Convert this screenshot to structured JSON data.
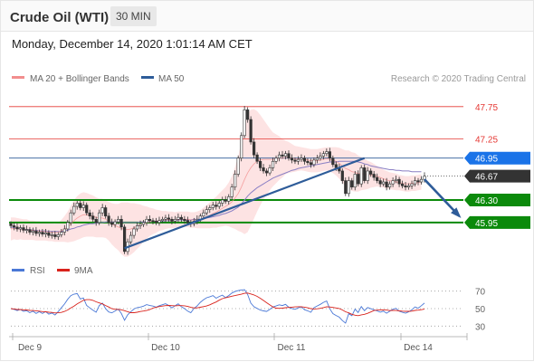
{
  "header": {
    "title": "Crude Oil (WTI)",
    "timeframe": "30 MIN"
  },
  "timestamp": "Monday, December 14, 2020 1:01:14 AM CET",
  "legend": {
    "ma20_bb": "MA 20 + Bollinger Bands",
    "ma50": "MA 50",
    "credit": "Research © 2020 Trading Central",
    "rsi": "RSI",
    "ma9": "9MA"
  },
  "colors": {
    "ma20": "#f28e8e",
    "ma50": "#2e5c99",
    "band_fill": "#fde3e3",
    "blue_badge": "#1a73e8",
    "green": "#0b8a0b",
    "dark": "#333333",
    "red_level": "#e53935",
    "rsi": "#4a78d6",
    "rsi_ma": "#d9231c"
  },
  "chart_data": [
    {
      "type": "candlestick",
      "title": "Crude Oil (WTI)",
      "ylim": [
        45.4,
        48.0
      ],
      "x_ticks": [
        "Dec 9",
        "Dec 10",
        "Dec 11",
        "Dec 14"
      ],
      "levels": [
        {
          "value": 47.75,
          "label": "47.75",
          "style": "red-text"
        },
        {
          "value": 47.25,
          "label": "47.25",
          "style": "red-text"
        },
        {
          "value": 46.95,
          "label": "46.95",
          "style": "blue-badge"
        },
        {
          "value": 46.67,
          "label": "46.67",
          "style": "dark-badge"
        },
        {
          "value": 46.3,
          "label": "46.30",
          "style": "green-badge"
        },
        {
          "value": 45.95,
          "label": "45.95",
          "style": "green-badge"
        }
      ],
      "close": [
        45.9,
        45.88,
        45.85,
        45.87,
        45.83,
        45.84,
        45.8,
        45.82,
        45.78,
        45.8,
        45.77,
        45.79,
        45.75,
        45.76,
        45.73,
        45.76,
        45.8,
        45.85,
        45.95,
        46.1,
        46.2,
        46.25,
        46.18,
        46.22,
        46.1,
        46.05,
        46.0,
        45.95,
        46.1,
        46.18,
        46.05,
        45.95,
        45.92,
        45.96,
        46.0,
        45.88,
        45.5,
        45.65,
        45.75,
        45.85,
        45.9,
        45.92,
        45.95,
        46.0,
        45.98,
        45.97,
        45.95,
        45.98,
        46.0,
        46.02,
        46.0,
        45.97,
        46.0,
        46.03,
        46.0,
        45.98,
        45.95,
        45.93,
        45.97,
        46.0,
        46.05,
        46.1,
        46.15,
        46.18,
        46.22,
        46.2,
        46.25,
        46.3,
        46.28,
        46.35,
        46.5,
        46.7,
        46.95,
        47.3,
        47.7,
        47.55,
        47.2,
        47.0,
        46.9,
        46.8,
        46.75,
        46.72,
        46.8,
        46.9,
        46.95,
        47.0,
        46.98,
        47.02,
        46.95,
        46.92,
        46.9,
        46.93,
        46.95,
        46.9,
        46.88,
        46.85,
        46.92,
        46.95,
        46.98,
        47.02,
        47.05,
        46.95,
        46.85,
        46.8,
        46.75,
        46.6,
        46.4,
        46.6,
        46.5,
        46.7,
        46.55,
        46.8,
        46.6,
        46.75,
        46.7,
        46.65,
        46.6,
        46.55,
        46.58,
        46.5,
        46.55,
        46.6,
        46.62,
        46.55,
        46.52,
        46.5,
        46.52,
        46.55,
        46.6,
        46.58,
        46.62,
        46.67
      ],
      "ma20": [
        45.85,
        45.86,
        45.85,
        45.85,
        45.84,
        45.84,
        45.83,
        45.83,
        45.82,
        45.82,
        45.81,
        45.81,
        45.8,
        45.8,
        45.79,
        45.8,
        45.82,
        45.85,
        45.88,
        45.93,
        45.98,
        46.02,
        46.05,
        46.07,
        46.07,
        46.06,
        46.05,
        46.03,
        46.02,
        46.02,
        46.0,
        45.97,
        45.93,
        45.9,
        45.88,
        45.86,
        45.84,
        45.84,
        45.85,
        45.87,
        45.89,
        45.91,
        45.93,
        45.95,
        45.96,
        45.97,
        45.97,
        45.98,
        45.98,
        45.99,
        45.99,
        45.99,
        45.99,
        46.0,
        46.0,
        46.0,
        46.0,
        45.99,
        45.99,
        45.99,
        46.0,
        46.02,
        46.04,
        46.06,
        46.09,
        46.11,
        46.14,
        46.17,
        46.2,
        46.23,
        46.27,
        46.33,
        46.4,
        46.5,
        46.62,
        46.72,
        46.8,
        46.86,
        46.9,
        46.92,
        46.93,
        46.93,
        46.93,
        46.93,
        46.94,
        46.95,
        46.95,
        46.96,
        46.96,
        46.95,
        46.94,
        46.94,
        46.94,
        46.93,
        46.92,
        46.91,
        46.91,
        46.91,
        46.92,
        46.93,
        46.94,
        46.93,
        46.92,
        46.9,
        46.87,
        46.83,
        46.79,
        46.77,
        46.74,
        46.73,
        46.71,
        46.71,
        46.7,
        46.69,
        46.69,
        46.68,
        46.67,
        46.65,
        46.63,
        46.61,
        46.6,
        46.59,
        46.58,
        46.57,
        46.56,
        46.55,
        46.55,
        46.56,
        46.56,
        46.57,
        46.58
      ],
      "band_width": [
        0.18,
        0.17,
        0.17,
        0.16,
        0.16,
        0.16,
        0.15,
        0.15,
        0.15,
        0.15,
        0.14,
        0.14,
        0.14,
        0.14,
        0.14,
        0.15,
        0.17,
        0.2,
        0.24,
        0.28,
        0.32,
        0.34,
        0.35,
        0.35,
        0.34,
        0.33,
        0.32,
        0.31,
        0.3,
        0.3,
        0.29,
        0.3,
        0.32,
        0.34,
        0.36,
        0.4,
        0.42,
        0.42,
        0.4,
        0.38,
        0.35,
        0.32,
        0.28,
        0.25,
        0.22,
        0.2,
        0.18,
        0.16,
        0.15,
        0.14,
        0.13,
        0.13,
        0.12,
        0.12,
        0.12,
        0.12,
        0.12,
        0.12,
        0.12,
        0.13,
        0.14,
        0.16,
        0.18,
        0.2,
        0.22,
        0.24,
        0.26,
        0.28,
        0.3,
        0.34,
        0.4,
        0.48,
        0.58,
        0.7,
        0.85,
        0.92,
        0.9,
        0.85,
        0.78,
        0.7,
        0.62,
        0.55,
        0.48,
        0.42,
        0.38,
        0.34,
        0.3,
        0.26,
        0.24,
        0.22,
        0.2,
        0.19,
        0.18,
        0.18,
        0.18,
        0.18,
        0.18,
        0.18,
        0.18,
        0.18,
        0.18,
        0.19,
        0.2,
        0.22,
        0.24,
        0.26,
        0.28,
        0.3,
        0.3,
        0.3,
        0.28,
        0.26,
        0.24,
        0.22,
        0.2,
        0.18,
        0.16,
        0.15,
        0.14,
        0.14,
        0.13,
        0.13,
        0.13,
        0.12,
        0.12,
        0.12,
        0.12,
        0.12,
        0.12,
        0.12,
        0.12
      ],
      "ma50": [
        45.88,
        45.87,
        45.86,
        45.85,
        45.85,
        45.84,
        45.84,
        45.83,
        45.83,
        45.82,
        45.82,
        45.82,
        45.81,
        45.81,
        45.81,
        45.81,
        45.81,
        45.82,
        45.83,
        45.85,
        45.86,
        45.88,
        45.89,
        45.91,
        45.92,
        45.93,
        45.93,
        45.94,
        45.95,
        45.95,
        45.96,
        45.96,
        45.96,
        45.96,
        45.96,
        45.96,
        45.95,
        45.95,
        45.95,
        45.95,
        45.95,
        45.96,
        45.96,
        45.96,
        45.96,
        45.97,
        45.97,
        45.97,
        45.97,
        45.98,
        45.98,
        45.98,
        45.98,
        45.99,
        45.99,
        45.99,
        45.99,
        45.99,
        46.0,
        46.0,
        46.0,
        46.01,
        46.02,
        46.03,
        46.04,
        46.05,
        46.06,
        46.08,
        46.09,
        46.11,
        46.13,
        46.16,
        46.19,
        46.24,
        46.3,
        46.36,
        46.41,
        46.45,
        46.49,
        46.52,
        46.55,
        46.58,
        46.61,
        46.64,
        46.66,
        46.68,
        46.7,
        46.72,
        46.74,
        46.76,
        46.77,
        46.79,
        46.8,
        46.81,
        46.82,
        46.83,
        46.84,
        46.85,
        46.86,
        46.87,
        46.88,
        46.89,
        46.89,
        46.89,
        46.9,
        46.9,
        46.9,
        46.9,
        46.9,
        46.9,
        46.89,
        46.88,
        46.86,
        46.85,
        46.83,
        46.82,
        46.81,
        46.8,
        46.79,
        46.78,
        46.77,
        46.77,
        46.76,
        46.76,
        46.75,
        46.75,
        46.75,
        46.74,
        46.74,
        46.74,
        46.74
      ],
      "trendline": [
        {
          "i": 36,
          "y": 45.55
        },
        {
          "i": 112,
          "y": 46.95
        }
      ],
      "forecast_arrow": [
        {
          "i": 131,
          "y": 46.62
        },
        {
          "i": 142,
          "y": 46.05
        }
      ]
    },
    {
      "type": "line",
      "series": [
        {
          "name": "RSI"
        },
        {
          "name": "9MA"
        }
      ],
      "ylim": [
        20,
        80
      ],
      "y_ticks": [
        70,
        50,
        30
      ]
    }
  ]
}
